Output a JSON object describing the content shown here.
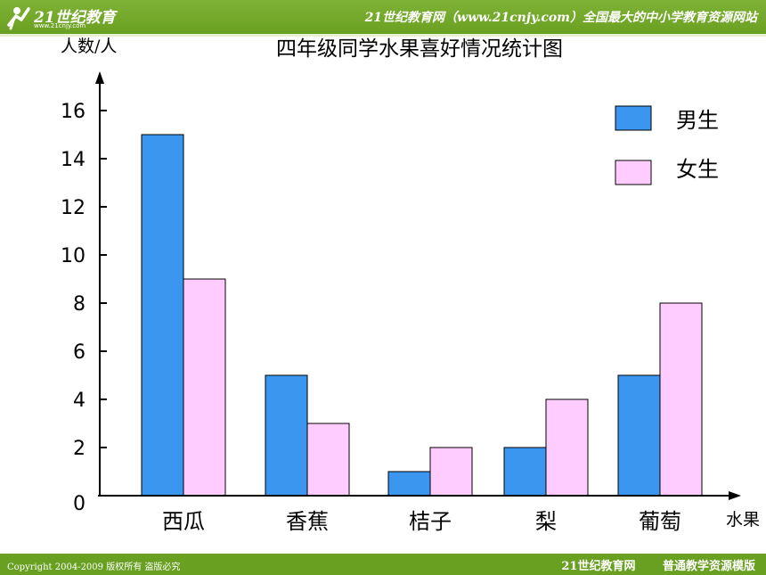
{
  "header": {
    "logo_text": "21世纪教育",
    "logo_url": "www.21cnjy.com",
    "banner": "21世纪教育网（www.21cnjy.com）全国最大的中小学教育资源网站"
  },
  "footer": {
    "copyright": "Copyright 2004-2009 版权所有 盗版必究",
    "site": "21世纪教育网",
    "slogan": "普通教学资源模版"
  },
  "colors": {
    "bar_green": "#6aa022",
    "male": "#3a96ee",
    "female": "#ffccff"
  },
  "chart_data": {
    "type": "bar",
    "title": "四年级同学水果喜好情况统计图",
    "ylabel": "人数/人",
    "xlabel": "水果",
    "categories": [
      "西瓜",
      "香蕉",
      "桔子",
      "梨",
      "葡萄"
    ],
    "series": [
      {
        "name": "男生",
        "values": [
          15,
          5,
          1,
          2,
          5
        ]
      },
      {
        "name": "女生",
        "values": [
          9,
          3,
          2,
          4,
          8
        ]
      }
    ],
    "yticks": [
      "0",
      "2",
      "4",
      "6",
      "8",
      "10",
      "12",
      "14",
      "16"
    ],
    "ylim": [
      0,
      17.5
    ],
    "grid": false,
    "legend_position": "top-right"
  }
}
